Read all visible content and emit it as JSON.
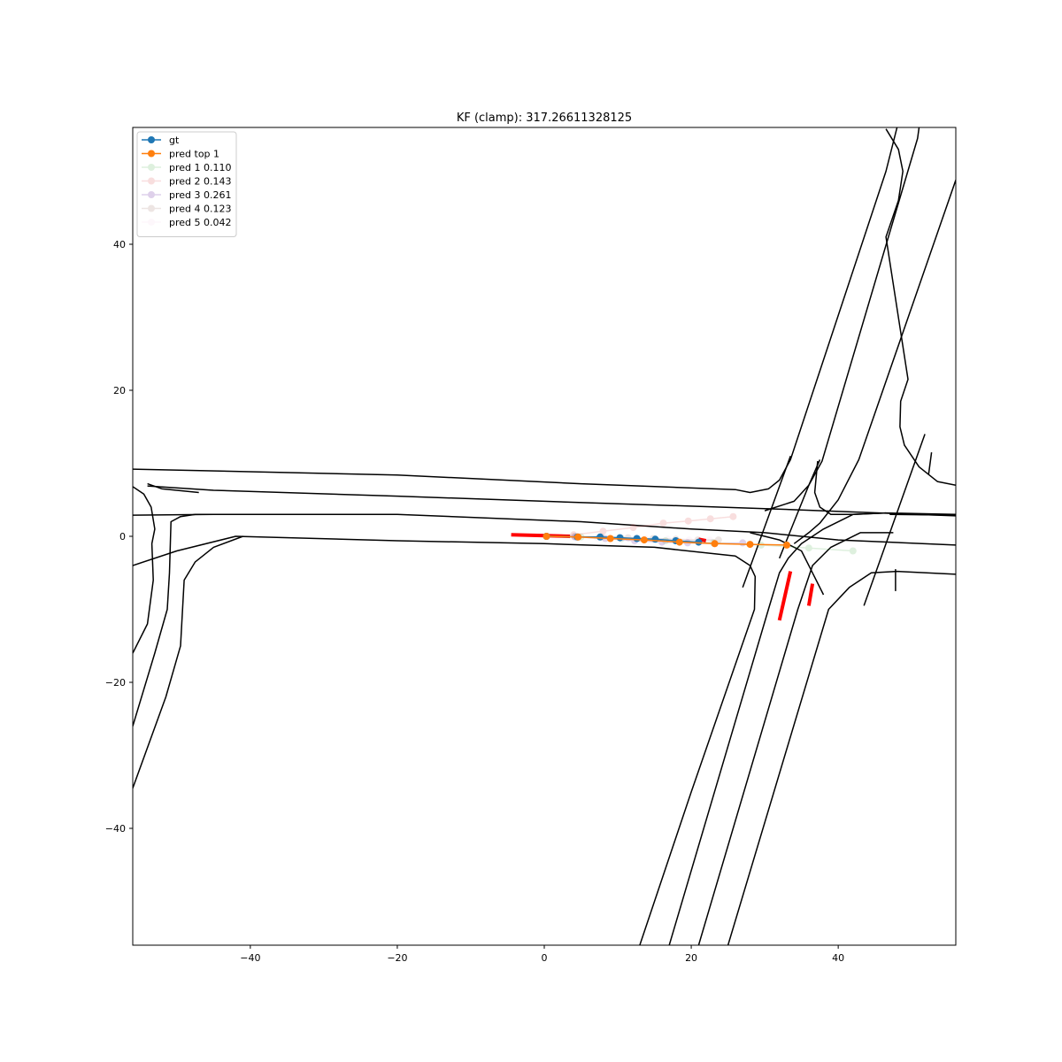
{
  "chart_data": {
    "type": "line",
    "title": "KF (clamp): 317.26611328125",
    "xlabel": "",
    "ylabel": "",
    "xlim": [
      -56,
      56
    ],
    "ylim": [
      -56,
      56
    ],
    "xticks": [
      -40,
      -20,
      0,
      20,
      40
    ],
    "yticks": [
      -40,
      -20,
      0,
      20,
      40
    ],
    "grid": false,
    "legend_position": "top-left",
    "series": [
      {
        "name": "gt",
        "color": "#1f77b4",
        "alpha": 1.0,
        "x": [
          0.3,
          4.5,
          7.6,
          10.3,
          12.6,
          15.1,
          17.9,
          21.0
        ],
        "y": [
          0.0,
          -0.1,
          -0.1,
          -0.2,
          -0.3,
          -0.4,
          -0.6,
          -0.8
        ]
      },
      {
        "name": "pred top 1",
        "color": "#ff7f0e",
        "alpha": 1.0,
        "x": [
          0.3,
          4.6,
          9.0,
          13.6,
          18.4,
          23.2,
          28.0,
          33.0
        ],
        "y": [
          0.0,
          -0.1,
          -0.3,
          -0.5,
          -0.8,
          -1.0,
          -1.1,
          -1.2
        ]
      },
      {
        "name": "pred 1 0.110",
        "color": "#2ca02c",
        "alpha": 0.15,
        "x": [
          0.3,
          5.0,
          10.5,
          16.5,
          23.0,
          29.5,
          36.0,
          42.0
        ],
        "y": [
          0.0,
          -0.1,
          -0.3,
          -0.6,
          -0.9,
          -1.2,
          -1.6,
          -2.0
        ]
      },
      {
        "name": "pred 2 0.143",
        "color": "#d62728",
        "alpha": 0.15,
        "x": [
          0.3,
          4.0,
          8.0,
          12.1,
          16.2,
          19.6,
          22.6,
          25.7
        ],
        "y": [
          0.0,
          0.2,
          0.7,
          1.2,
          1.8,
          2.1,
          2.4,
          2.7
        ]
      },
      {
        "name": "pred 3 0.261",
        "color": "#9467bd",
        "alpha": 0.3,
        "x": [
          0.3,
          4.2,
          8.3,
          12.3,
          16.0,
          19.5,
          23.2,
          27.0
        ],
        "y": [
          0.0,
          -0.1,
          -0.3,
          -0.6,
          -0.8,
          -0.9,
          -1.0,
          -0.9
        ]
      },
      {
        "name": "pred 4 0.123",
        "color": "#8c564b",
        "alpha": 0.15,
        "x": [
          0.3,
          4.1,
          7.8,
          11.4,
          14.8,
          17.9,
          20.9,
          23.7
        ],
        "y": [
          0.0,
          0.0,
          -0.1,
          -0.2,
          -0.3,
          -0.4,
          -0.5,
          -0.5
        ]
      },
      {
        "name": "pred 5 0.042",
        "color": "#e377c2",
        "alpha": 0.05,
        "x": [
          0.3,
          3.8,
          7.2,
          10.5,
          13.7,
          16.8,
          19.7,
          22.5
        ],
        "y": [
          0.0,
          -0.1,
          -0.2,
          -0.2,
          -0.3,
          -0.4,
          -0.5,
          -0.5
        ]
      }
    ],
    "map_polylines": [
      [
        [
          -56,
          9.2
        ],
        [
          -20,
          8.4
        ],
        [
          5,
          7.2
        ],
        [
          26,
          6.4
        ],
        [
          28,
          6.0
        ],
        [
          30.5,
          6.5
        ],
        [
          32,
          7.7
        ],
        [
          33.5,
          10.5
        ],
        [
          46.5,
          50.0
        ],
        [
          48,
          56
        ]
      ],
      [
        [
          -54,
          6.9
        ],
        [
          -45,
          6.3
        ],
        [
          -20,
          5.5
        ],
        [
          0,
          4.8
        ],
        [
          30,
          3.8
        ],
        [
          56,
          2.8
        ]
      ],
      [
        [
          -56,
          2.9
        ],
        [
          -45,
          3.0
        ],
        [
          -20,
          3.0
        ],
        [
          5,
          2.0
        ],
        [
          20,
          1.0
        ],
        [
          30,
          0.5
        ],
        [
          40,
          -0.5
        ],
        [
          56,
          -1.2
        ]
      ],
      [
        [
          -56,
          -4.0
        ],
        [
          -50,
          -2.0
        ],
        [
          -42,
          0.0
        ],
        [
          -20,
          -0.6
        ],
        [
          0,
          -1.0
        ],
        [
          15,
          -1.5
        ],
        [
          26,
          -2.7
        ],
        [
          28,
          -4.0
        ],
        [
          28.7,
          -5.5
        ],
        [
          28.6,
          -10.0
        ],
        [
          20,
          -35.0
        ],
        [
          13,
          -56
        ]
      ],
      [
        [
          -54,
          7.2
        ],
        [
          -52,
          6.5
        ],
        [
          -47,
          6.0
        ]
      ],
      [
        [
          -56,
          6.8
        ],
        [
          -54.5,
          5.8
        ],
        [
          -53.5,
          4.0
        ],
        [
          -53,
          1.0
        ],
        [
          -53.4,
          -1.0
        ],
        [
          -53.2,
          -6.0
        ],
        [
          -54,
          -12.0
        ],
        [
          -56,
          -16.0
        ]
      ],
      [
        [
          -56,
          -26.0
        ],
        [
          -53.0,
          -16.0
        ],
        [
          -51.3,
          -10.0
        ],
        [
          -51.0,
          -5.0
        ],
        [
          -50.8,
          2.0
        ],
        [
          -49.5,
          2.7
        ],
        [
          -47.5,
          3.0
        ],
        [
          -45,
          3.0
        ]
      ],
      [
        [
          -56,
          -34.5
        ],
        [
          -51.5,
          -22.0
        ],
        [
          -49.5,
          -15.0
        ],
        [
          -49,
          -6.0
        ],
        [
          -47.5,
          -3.5
        ],
        [
          -45.0,
          -1.5
        ],
        [
          -41.0,
          0.0
        ]
      ],
      [
        [
          17,
          -56
        ],
        [
          30.5,
          -10.0
        ],
        [
          32,
          -5.0
        ],
        [
          33.2,
          -3.0
        ],
        [
          35,
          -1.0
        ],
        [
          38,
          1.0
        ],
        [
          42.0,
          3.0
        ],
        [
          46.5,
          3.2
        ],
        [
          56,
          3.0
        ]
      ],
      [
        [
          21,
          -56
        ],
        [
          34.5,
          -10.0
        ],
        [
          36.5,
          -4.0
        ],
        [
          39.0,
          -1.5
        ],
        [
          43,
          0.5
        ],
        [
          47.5,
          0.5
        ]
      ],
      [
        [
          25,
          -56
        ],
        [
          38.7,
          -10.0
        ],
        [
          41.5,
          -7.0
        ],
        [
          44.5,
          -5.0
        ],
        [
          48,
          -4.8
        ],
        [
          56,
          -5.2
        ]
      ],
      [
        [
          34,
          -1.0
        ],
        [
          36.0,
          0.5
        ],
        [
          37.5,
          1.8
        ],
        [
          40.0,
          5.0
        ],
        [
          42.8,
          10.5
        ],
        [
          56,
          48.8
        ]
      ],
      [
        [
          37.2,
          10.3
        ],
        [
          36.8,
          6.0
        ],
        [
          37.5,
          4.0
        ],
        [
          39.0,
          3.0
        ],
        [
          42.0,
          3.0
        ],
        [
          46.5,
          3.2
        ]
      ],
      [
        [
          30.0,
          3.5
        ],
        [
          34.0,
          4.8
        ],
        [
          36.0,
          7.0
        ],
        [
          37.5,
          10.5
        ]
      ],
      [
        [
          32.0,
          -3.0
        ],
        [
          34.0,
          2.0
        ],
        [
          36.0,
          7.0
        ],
        [
          37.8,
          10.3
        ],
        [
          50.8,
          54.5
        ],
        [
          51.0,
          56
        ]
      ],
      [
        [
          28.0,
          0.5
        ],
        [
          32.0,
          -0.5
        ],
        [
          35.0,
          -2.0
        ],
        [
          36.5,
          -5.0
        ],
        [
          38.0,
          -8.0
        ]
      ],
      [
        [
          46.5,
          55.8
        ],
        [
          48.2,
          53.0
        ],
        [
          48.8,
          50.0
        ],
        [
          48.2,
          46.0
        ],
        [
          46.5,
          41.0
        ],
        [
          49.5,
          21.5
        ],
        [
          48.5,
          18.5
        ],
        [
          48.4,
          15.0
        ],
        [
          49.0,
          12.5
        ],
        [
          51.0,
          9.5
        ],
        [
          53.5,
          7.5
        ],
        [
          56,
          7.0
        ]
      ],
      [
        [
          27.0,
          -7.0
        ],
        [
          33.5,
          11.0
        ]
      ],
      [
        [
          43.5,
          -9.5
        ],
        [
          51.8,
          14.0
        ]
      ],
      [
        [
          47.8,
          -7.5
        ],
        [
          47.8,
          -4.5
        ]
      ],
      [
        [
          52.7,
          11.5
        ],
        [
          52.3,
          8.5
        ]
      ],
      [
        [
          47.0,
          3.0
        ],
        [
          56,
          2.9
        ]
      ]
    ],
    "agent_segments": [
      [
        [
          -4.5,
          0.2
        ],
        [
          3.5,
          0.0
        ]
      ],
      [
        [
          21.0,
          -0.4
        ],
        [
          22.0,
          -0.6
        ]
      ],
      [
        [
          33.5,
          -4.8
        ],
        [
          32.0,
          -11.5
        ]
      ],
      [
        [
          36.5,
          -6.5
        ],
        [
          36.0,
          -9.5
        ]
      ]
    ]
  }
}
